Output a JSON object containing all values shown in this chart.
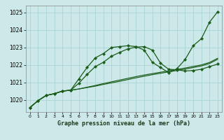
{
  "title": "Graphe pression niveau de la mer (hPa)",
  "background_color": "#cce8e8",
  "grid_color": "#aad4d4",
  "line_color": "#1a5c1a",
  "xlim": [
    -0.5,
    23.5
  ],
  "ylim": [
    1019.3,
    1025.4
  ],
  "yticks": [
    1020,
    1021,
    1022,
    1023,
    1024,
    1025
  ],
  "xticks": [
    0,
    1,
    2,
    3,
    4,
    5,
    6,
    7,
    8,
    9,
    10,
    11,
    12,
    13,
    14,
    15,
    16,
    17,
    18,
    19,
    20,
    21,
    22,
    23
  ],
  "s1": [
    1019.55,
    1019.95,
    1020.25,
    1020.35,
    1020.5,
    1020.55,
    1021.2,
    1021.85,
    1022.4,
    1022.65,
    1023.0,
    1023.05,
    1023.1,
    1023.05,
    1022.85,
    1022.15,
    1021.85,
    1021.55,
    1021.78,
    1022.3,
    1023.1,
    1023.5,
    1024.45,
    1025.05
  ],
  "s2": [
    1019.55,
    1019.95,
    1020.25,
    1020.35,
    1020.5,
    1020.55,
    1020.95,
    1021.45,
    1021.9,
    1022.15,
    1022.5,
    1022.72,
    1022.92,
    1023.02,
    1023.05,
    1022.85,
    1022.1,
    1021.75,
    1021.72,
    1021.65,
    1021.68,
    1021.75,
    1021.9,
    1022.05
  ],
  "s3": [
    1019.55,
    1019.95,
    1020.25,
    1020.35,
    1020.5,
    1020.55,
    1020.62,
    1020.7,
    1020.78,
    1020.88,
    1020.97,
    1021.06,
    1021.16,
    1021.26,
    1021.35,
    1021.44,
    1021.52,
    1021.6,
    1021.68,
    1021.76,
    1021.85,
    1021.94,
    1022.08,
    1022.32
  ],
  "s4": [
    1019.55,
    1019.95,
    1020.25,
    1020.35,
    1020.5,
    1020.55,
    1020.62,
    1020.72,
    1020.82,
    1020.93,
    1021.03,
    1021.13,
    1021.23,
    1021.33,
    1021.42,
    1021.5,
    1021.58,
    1021.66,
    1021.74,
    1021.82,
    1021.91,
    1022.0,
    1022.14,
    1022.38
  ]
}
